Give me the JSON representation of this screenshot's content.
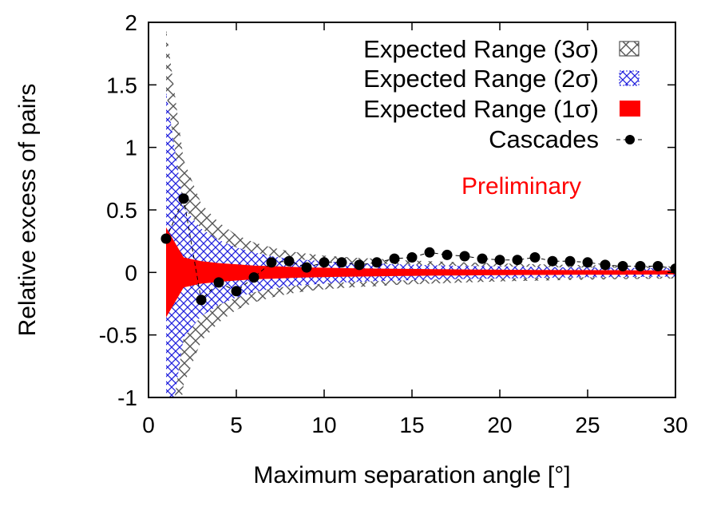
{
  "chart_data": {
    "type": "scatter",
    "xlabel": "Maximum separation angle [°]",
    "ylabel": "Relative excess of pairs",
    "xlim": [
      0,
      30
    ],
    "ylim": [
      -1,
      2
    ],
    "xticks": [
      "0",
      "5",
      "10",
      "15",
      "20",
      "25",
      "30"
    ],
    "yticks": [
      "-1",
      "-0.5",
      "0",
      "0.5",
      "1",
      "1.5",
      "2"
    ],
    "grid": false,
    "legend_position": "top-right",
    "legend": [
      {
        "label": "Expected Range (3σ)",
        "style": "hatch-gray"
      },
      {
        "label": "Expected Range (2σ)",
        "style": "hatch-blue"
      },
      {
        "label": "Expected Range (1σ)",
        "style": "solid-red"
      },
      {
        "label": "Cascades",
        "style": "marker-line-black"
      }
    ],
    "annotation": {
      "text": "Preliminary",
      "color": "#ff0000"
    },
    "colors": {
      "sigma3": "#555555",
      "sigma2": "#2222dd",
      "sigma1": "#ff0000",
      "cascades": "#000000"
    },
    "bands": {
      "x": [
        1,
        2,
        3,
        4,
        5,
        6,
        7,
        8,
        9,
        10,
        11,
        12,
        13,
        14,
        15,
        16,
        17,
        18,
        19,
        20,
        21,
        22,
        23,
        24,
        25,
        26,
        27,
        28,
        29,
        30
      ],
      "sigma1": [
        0.36,
        0.12,
        0.09,
        0.075,
        0.065,
        0.055,
        0.05,
        0.045,
        0.04,
        0.038,
        0.035,
        0.033,
        0.031,
        0.029,
        0.028,
        0.026,
        0.025,
        0.024,
        0.023,
        0.022,
        0.021,
        0.02,
        0.02,
        0.019,
        0.019,
        0.018,
        0.018,
        0.017,
        0.017,
        0.016
      ],
      "sigma2": [
        1.45,
        0.52,
        0.35,
        0.26,
        0.2,
        0.16,
        0.13,
        0.11,
        0.1,
        0.09,
        0.08,
        0.075,
        0.07,
        0.066,
        0.062,
        0.058,
        0.055,
        0.052,
        0.05,
        0.048,
        0.046,
        0.044,
        0.042,
        0.04,
        0.039,
        0.038,
        0.037,
        0.036,
        0.035,
        0.034
      ],
      "sigma3": [
        1.95,
        0.9,
        0.55,
        0.4,
        0.3,
        0.24,
        0.2,
        0.17,
        0.15,
        0.135,
        0.125,
        0.115,
        0.11,
        0.1,
        0.095,
        0.09,
        0.085,
        0.08,
        0.076,
        0.072,
        0.069,
        0.066,
        0.063,
        0.06,
        0.058,
        0.056,
        0.054,
        0.052,
        0.05,
        0.048
      ]
    },
    "series": [
      {
        "name": "Cascades",
        "x": [
          1,
          2,
          3,
          4,
          5,
          6,
          7,
          8,
          9,
          10,
          11,
          12,
          13,
          14,
          15,
          16,
          17,
          18,
          19,
          20,
          21,
          22,
          23,
          24,
          25,
          26,
          27,
          28,
          29,
          30
        ],
        "y": [
          0.27,
          0.59,
          -0.22,
          -0.08,
          -0.15,
          -0.04,
          0.08,
          0.09,
          0.04,
          0.08,
          0.08,
          0.06,
          0.08,
          0.11,
          0.12,
          0.16,
          0.14,
          0.13,
          0.11,
          0.1,
          0.1,
          0.12,
          0.09,
          0.09,
          0.08,
          0.06,
          0.05,
          0.05,
          0.05,
          0.03
        ]
      }
    ]
  }
}
